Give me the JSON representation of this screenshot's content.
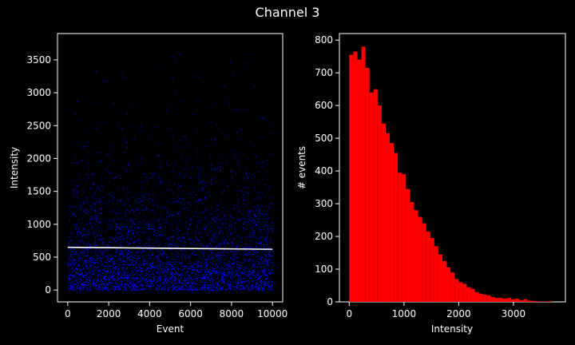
{
  "figure_title": "Channel 3",
  "chart_data": [
    {
      "type": "scatter",
      "title": "",
      "xlabel": "Event",
      "ylabel": "Intensity",
      "xlim": [
        -500,
        10500
      ],
      "ylim": [
        -180,
        3900
      ],
      "xticks": [
        0,
        2000,
        4000,
        6000,
        8000,
        10000
      ],
      "yticks": [
        0,
        500,
        1000,
        1500,
        2000,
        2500,
        3000,
        3500
      ],
      "grid": false,
      "point_color": "#0000ff",
      "trend_color": "#ffffff",
      "series": [
        {
          "points_summary": {
            "n_events": 10000,
            "x_range": [
              0,
              10000
            ],
            "y_range": [
              0,
              3700
            ]
          }
        }
      ],
      "trendline": {
        "x": [
          0,
          10000
        ],
        "y": [
          650,
          620
        ]
      }
    },
    {
      "type": "bar",
      "title": "",
      "xlabel": "Intensity",
      "ylabel": "# events",
      "xlim": [
        -180,
        3950
      ],
      "ylim": [
        0,
        820
      ],
      "xticks": [
        0,
        1000,
        2000,
        3000
      ],
      "yticks": [
        0,
        100,
        200,
        300,
        400,
        500,
        600,
        700,
        800
      ],
      "grid": false,
      "bar_color": "#ff0000",
      "bin_width": 74,
      "bin_start": 0,
      "values": [
        755,
        765,
        740,
        780,
        715,
        640,
        650,
        600,
        545,
        515,
        485,
        455,
        395,
        390,
        345,
        305,
        280,
        260,
        240,
        215,
        195,
        170,
        145,
        125,
        105,
        90,
        70,
        60,
        55,
        45,
        40,
        30,
        25,
        22,
        20,
        15,
        12,
        12,
        10,
        12,
        8,
        10,
        5,
        8,
        4,
        3,
        2,
        1,
        1,
        2
      ]
    }
  ]
}
